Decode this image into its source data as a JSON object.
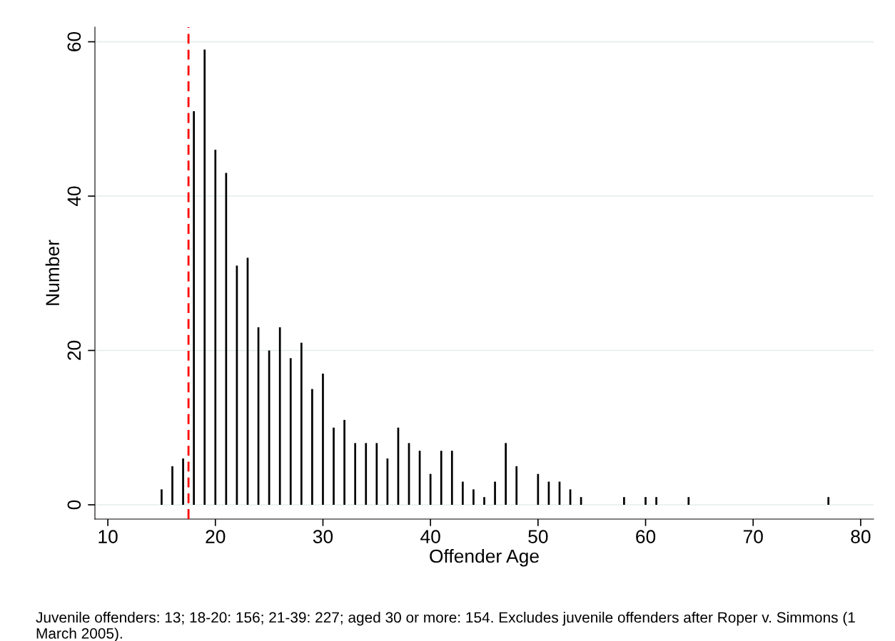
{
  "chart_data": {
    "type": "bar",
    "xlabel": "Offender Age",
    "ylabel": "Number",
    "x": [
      15,
      16,
      17,
      18,
      19,
      20,
      21,
      22,
      23,
      24,
      25,
      26,
      27,
      28,
      29,
      30,
      31,
      32,
      33,
      34,
      35,
      36,
      37,
      38,
      39,
      40,
      41,
      42,
      43,
      44,
      45,
      46,
      47,
      48,
      50,
      51,
      52,
      53,
      54,
      58,
      60,
      61,
      64,
      77
    ],
    "values": [
      2,
      5,
      6,
      51,
      59,
      46,
      43,
      31,
      32,
      23,
      20,
      23,
      19,
      21,
      15,
      17,
      10,
      11,
      8,
      8,
      8,
      6,
      10,
      8,
      7,
      4,
      7,
      7,
      3,
      2,
      1,
      3,
      8,
      5,
      4,
      3,
      3,
      2,
      1,
      1,
      1,
      1,
      1,
      1
    ],
    "color": "#000000",
    "xlim": [
      8.8,
      81.2
    ],
    "xticks": [
      10,
      20,
      30,
      40,
      50,
      60,
      70,
      80
    ],
    "ylim": [
      -1.85,
      61.9
    ],
    "yticks": [
      0,
      20,
      40,
      60
    ],
    "grid": "y",
    "ref_lines": [
      {
        "axis": "x",
        "value": 17.5,
        "color": "#ff0000",
        "line_style": "dashed"
      }
    ],
    "annotations": [
      "Juvenile offenders: 13; 18-20: 156; 21-39: 227; aged 30 or more: 154. Excludes juvenile offenders after Roper v. Simmons (1 March 2005)."
    ]
  }
}
